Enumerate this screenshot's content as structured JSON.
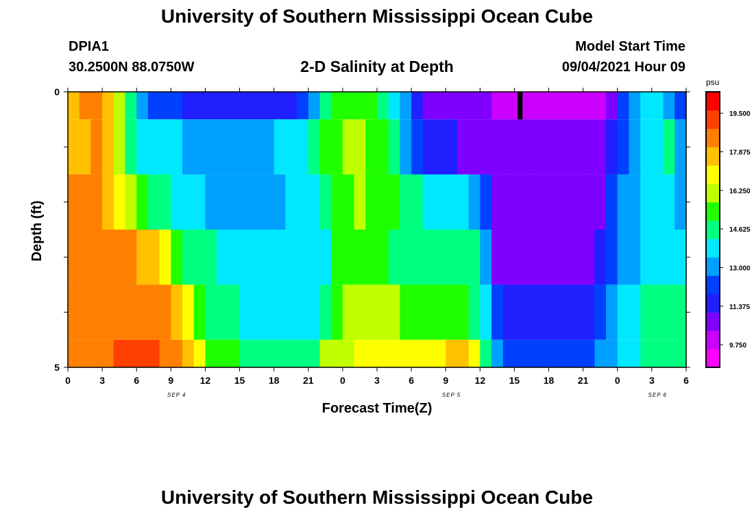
{
  "header": {
    "title": "University of Southern Mississippi Ocean Cube",
    "station": "DPIA1",
    "coords": "30.2500N  88.0750W",
    "subtitle": "2-D Salinity at Depth",
    "model_start_label": "Model Start Time",
    "model_start_value": "09/04/2021 Hour 09"
  },
  "footer": {
    "title": "University of Southern Mississippi Ocean Cube"
  },
  "colors": {
    "scale": [
      "#ff00ff",
      "#cc00ff",
      "#8000ff",
      "#2020ff",
      "#0040ff",
      "#00a0ff",
      "#00e8ff",
      "#00ff80",
      "#20ff00",
      "#c0ff00",
      "#ffff00",
      "#ffc000",
      "#ff8000",
      "#ff4000",
      "#ff0000"
    ]
  },
  "chart_data": {
    "type": "heatmap",
    "title": "2-D Salinity at Depth",
    "xlabel": "Forecast Time(Z)",
    "ylabel": "Depth (ft)",
    "x_tick_labels": [
      "0",
      "3",
      "6",
      "9",
      "12",
      "15",
      "18",
      "21",
      "0",
      "3",
      "6",
      "9",
      "12",
      "15",
      "18",
      "21",
      "0",
      "3",
      "6"
    ],
    "day_labels": [
      "SEP 4",
      "SEP 5",
      "SEP 6"
    ],
    "y_tick_labels": [
      "0",
      "5"
    ],
    "ylim": [
      0,
      5
    ],
    "xlim_hours": [
      0,
      54
    ],
    "colorbar": {
      "unit": "psu",
      "labels": [
        "19.500",
        "17.875",
        "16.250",
        "14.625",
        "13.000",
        "11.375",
        "9.750"
      ],
      "range": [
        8.8,
        20.4
      ]
    },
    "marker_hour": 39.5,
    "rows": [
      {
        "depth_range": [
          0,
          0.5
        ],
        "profile": [
          [
            0,
            17.5
          ],
          [
            1,
            18.8
          ],
          [
            3,
            18.6
          ],
          [
            4,
            17.5
          ],
          [
            5,
            15.5
          ],
          [
            6,
            14.0
          ],
          [
            7,
            12.5
          ],
          [
            8,
            11.8
          ],
          [
            12,
            11.6
          ],
          [
            20,
            11.7
          ],
          [
            21,
            12.5
          ],
          [
            22,
            13.8
          ],
          [
            23,
            15.0
          ],
          [
            26,
            16.0
          ],
          [
            28,
            14.5
          ],
          [
            29,
            13.3
          ],
          [
            30,
            12.0
          ],
          [
            31,
            10.6
          ],
          [
            33,
            10.2
          ],
          [
            38,
            10.0
          ],
          [
            39,
            9.5
          ],
          [
            46,
            9.4
          ],
          [
            47,
            10.5
          ],
          [
            48,
            11.2
          ],
          [
            49,
            12.5
          ],
          [
            50,
            13.5
          ],
          [
            52,
            14.0
          ],
          [
            53,
            12.0
          ],
          [
            54,
            11.5
          ]
        ]
      },
      {
        "depth_range": [
          0.5,
          1.5
        ],
        "profile": [
          [
            0,
            18.0
          ],
          [
            3,
            18.6
          ],
          [
            4,
            17.2
          ],
          [
            5,
            15.5
          ],
          [
            6,
            14.5
          ],
          [
            7,
            13.8
          ],
          [
            10,
            13.3
          ],
          [
            15,
            13.2
          ],
          [
            20,
            13.5
          ],
          [
            21,
            14.5
          ],
          [
            22,
            15.5
          ],
          [
            25,
            16.0
          ],
          [
            28,
            15.5
          ],
          [
            29,
            14.0
          ],
          [
            30,
            12.5
          ],
          [
            31,
            11.5
          ],
          [
            34,
            11.0
          ],
          [
            36,
            10.3
          ],
          [
            46,
            10.2
          ],
          [
            47,
            11.0
          ],
          [
            48,
            12.0
          ],
          [
            49,
            13.0
          ],
          [
            51,
            14.0
          ],
          [
            53,
            14.5
          ],
          [
            54,
            11.5
          ]
        ]
      },
      {
        "depth_range": [
          1.5,
          2.5
        ],
        "profile": [
          [
            0,
            18.5
          ],
          [
            3,
            18.5
          ],
          [
            5,
            17.0
          ],
          [
            6,
            15.8
          ],
          [
            7,
            14.8
          ],
          [
            9,
            14.0
          ],
          [
            11,
            13.4
          ],
          [
            15,
            13.1
          ],
          [
            21,
            13.5
          ],
          [
            22,
            14.5
          ],
          [
            23,
            15.5
          ],
          [
            26,
            16.0
          ],
          [
            29,
            15.0
          ],
          [
            31,
            14.2
          ],
          [
            36,
            13.2
          ],
          [
            37,
            11.0
          ],
          [
            38,
            10.2
          ],
          [
            46,
            10.2
          ],
          [
            47,
            11.5
          ],
          [
            48,
            12.7
          ],
          [
            50,
            13.3
          ],
          [
            52,
            13.7
          ],
          [
            54,
            12.8
          ]
        ]
      },
      {
        "depth_range": [
          2.5,
          3.5
        ],
        "profile": [
          [
            0,
            18.6
          ],
          [
            6,
            18.5
          ],
          [
            8,
            17.5
          ],
          [
            9,
            16.0
          ],
          [
            10,
            15.2
          ],
          [
            11,
            14.7
          ],
          [
            14,
            14.0
          ],
          [
            18,
            13.5
          ],
          [
            22,
            13.5
          ],
          [
            23,
            14.5
          ],
          [
            24,
            15.7
          ],
          [
            26,
            15.5
          ],
          [
            29,
            14.7
          ],
          [
            33,
            14.3
          ],
          [
            36,
            14.5
          ],
          [
            37,
            11.0
          ],
          [
            38,
            10.5
          ],
          [
            46,
            10.5
          ],
          [
            47,
            11.5
          ],
          [
            48,
            12.8
          ],
          [
            50,
            13.5
          ],
          [
            52,
            14.0
          ],
          [
            54,
            14.0
          ]
        ]
      },
      {
        "depth_range": [
          3.5,
          4.5
        ],
        "profile": [
          [
            0,
            18.7
          ],
          [
            8,
            18.7
          ],
          [
            10,
            18.0
          ],
          [
            11,
            16.5
          ],
          [
            12,
            15.0
          ],
          [
            14,
            14.3
          ],
          [
            18,
            13.8
          ],
          [
            22,
            13.7
          ],
          [
            23,
            15.3
          ],
          [
            24,
            16.3
          ],
          [
            26,
            16.2
          ],
          [
            29,
            15.8
          ],
          [
            34,
            15.3
          ],
          [
            36,
            14.5
          ],
          [
            37,
            12.5
          ],
          [
            38,
            11.3
          ],
          [
            45,
            11.4
          ],
          [
            46,
            12.0
          ],
          [
            47,
            12.8
          ],
          [
            48,
            13.5
          ],
          [
            50,
            14.3
          ],
          [
            52,
            15.0
          ],
          [
            54,
            15.0
          ]
        ]
      },
      {
        "depth_range": [
          4.5,
          5
        ],
        "profile": [
          [
            0,
            18.8
          ],
          [
            4,
            19.0
          ],
          [
            6,
            19.7
          ],
          [
            8,
            19.2
          ],
          [
            10,
            18.7
          ],
          [
            11,
            17.5
          ],
          [
            12,
            16.0
          ],
          [
            14,
            15.2
          ],
          [
            18,
            14.6
          ],
          [
            21,
            14.3
          ],
          [
            22,
            15.5
          ],
          [
            23,
            16.5
          ],
          [
            26,
            16.8
          ],
          [
            31,
            17.0
          ],
          [
            35,
            17.8
          ],
          [
            36,
            16.0
          ],
          [
            37,
            13.5
          ],
          [
            38,
            12.0
          ],
          [
            44,
            11.8
          ],
          [
            46,
            12.5
          ],
          [
            47,
            13.0
          ],
          [
            48,
            13.5
          ],
          [
            50,
            14.3
          ],
          [
            52,
            14.8
          ],
          [
            54,
            14.8
          ]
        ]
      }
    ]
  }
}
